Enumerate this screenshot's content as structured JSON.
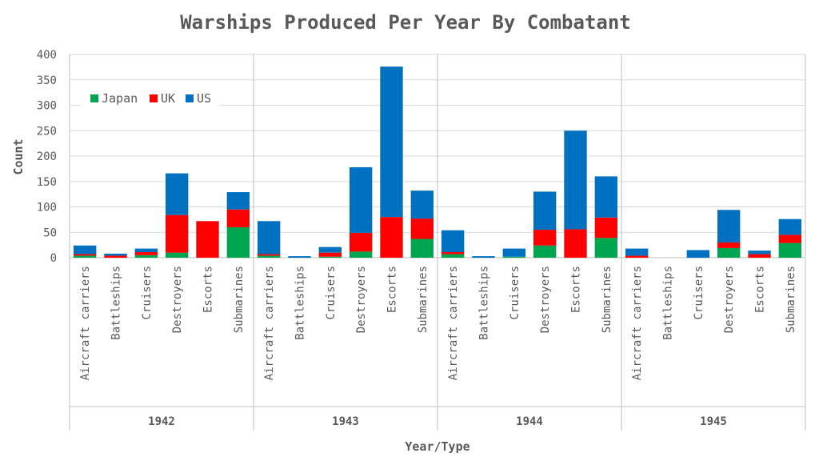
{
  "chart_data": {
    "type": "bar",
    "stacked": true,
    "title": "Warships Produced Per Year By Combatant",
    "xlabel": "Year/Type",
    "ylabel": "Count",
    "ylim": [
      0,
      400
    ],
    "yticks": [
      0,
      50,
      100,
      150,
      200,
      250,
      300,
      350,
      400
    ],
    "grid": true,
    "legend_position": "top-left",
    "groups": [
      "1942",
      "1943",
      "1944",
      "1945"
    ],
    "types": [
      "Aircraft carriers",
      "Battleships",
      "Cruisers",
      "Destroyers",
      "Escorts",
      "Submarines"
    ],
    "series": [
      {
        "name": "Japan",
        "color": "#00A550",
        "values": [
          4,
          0,
          5,
          10,
          0,
          60,
          4,
          0,
          2,
          12,
          0,
          37,
          7,
          0,
          2,
          24,
          0,
          39,
          0,
          0,
          0,
          19,
          0,
          29
        ]
      },
      {
        "name": "UK",
        "color": "#FF0000",
        "values": [
          3,
          4,
          6,
          74,
          72,
          35,
          3,
          0,
          8,
          37,
          80,
          40,
          4,
          0,
          0,
          31,
          56,
          40,
          4,
          0,
          0,
          11,
          7,
          16
        ]
      },
      {
        "name": "US",
        "color": "#0070C0",
        "values": [
          17,
          4,
          7,
          82,
          0,
          34,
          65,
          3,
          11,
          129,
          296,
          55,
          43,
          3,
          16,
          75,
          194,
          81,
          14,
          0,
          15,
          64,
          7,
          31
        ]
      }
    ]
  }
}
